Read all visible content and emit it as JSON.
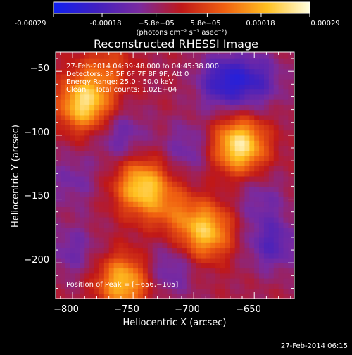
{
  "colorbar": {
    "ticks": [
      "-0.00029",
      "-0.00018",
      "−5.8e−05",
      "5.8e−05",
      "0.00018",
      "0.00029"
    ],
    "tick_values": [
      -0.00029,
      -0.00018,
      -5.8e-05,
      5.8e-05,
      0.00018,
      0.00029
    ],
    "range": [
      -0.00029,
      0.00029
    ],
    "unit_label": "(photons cm⁻² s⁻¹ asec⁻²)",
    "colors": [
      "#1020f0",
      "#4020c0",
      "#7a2aa0",
      "#c01818",
      "#f06010",
      "#ffc020",
      "#ffffe0"
    ]
  },
  "chart_data": {
    "type": "heatmap",
    "title": "Reconstructed RHESSI Image",
    "xlabel": "Heliocentric X (arcsec)",
    "ylabel": "Heliocentric Y (arcsec)",
    "xlim": [
      -814,
      -617
    ],
    "ylim": [
      -228,
      -35
    ],
    "xticks": [
      -800,
      -750,
      -700,
      -650
    ],
    "xtick_labels": [
      "−800",
      "−750",
      "−700",
      "−650"
    ],
    "yticks": [
      -50,
      -100,
      -150,
      -200
    ],
    "ytick_labels": [
      "−50",
      "−100",
      "−150",
      "−200"
    ],
    "info_lines": [
      "27-Feb-2014 04:39:48.000 to 04:45:38.000",
      "Detectors: 3F 5F 6F 7F 8F 9F, Att 0",
      "Energy Range: 25.0 - 50.0 keV",
      "Clean    Total counts: 1.02E+04"
    ],
    "peak_label": "Position of Peak = [−656,−105]",
    "peak": [
      -656,
      -105
    ],
    "blobs": [
      {
        "x": -790,
        "y": -75,
        "amp": 0.27
      },
      {
        "x": -662,
        "y": -108,
        "amp": 0.29
      },
      {
        "x": -743,
        "y": -140,
        "amp": 0.25
      },
      {
        "x": -690,
        "y": -175,
        "amp": 0.24
      },
      {
        "x": -758,
        "y": -215,
        "amp": 0.23
      },
      {
        "x": -718,
        "y": -158,
        "amp": 0.1
      },
      {
        "x": -772,
        "y": -48,
        "amp": 0.1
      },
      {
        "x": -675,
        "y": -58,
        "amp": -0.17
      },
      {
        "x": -648,
        "y": -57,
        "amp": -0.12
      },
      {
        "x": -635,
        "y": -185,
        "amp": -0.12
      },
      {
        "x": -720,
        "y": -205,
        "amp": -0.09
      },
      {
        "x": -800,
        "y": -190,
        "amp": -0.08
      },
      {
        "x": -705,
        "y": -110,
        "amp": -0.08
      },
      {
        "x": -760,
        "y": -100,
        "amp": -0.09
      },
      {
        "x": -800,
        "y": -135,
        "amp": -0.07
      },
      {
        "x": -645,
        "y": -150,
        "amp": -0.07
      }
    ]
  },
  "footer": {
    "timestamp": "27-Feb-2014 06:15"
  }
}
